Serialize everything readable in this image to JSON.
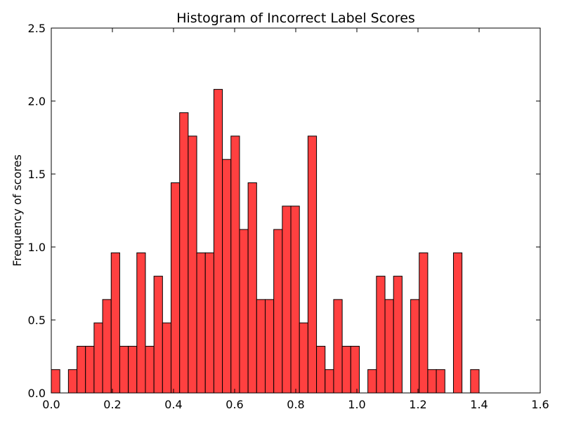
{
  "chart_data": {
    "type": "bar",
    "title": "Histogram of Incorrect Label Scores",
    "xlabel": "",
    "ylabel": "Frequency of scores",
    "xlim": [
      0.0,
      1.6
    ],
    "ylim": [
      0.0,
      2.5
    ],
    "bin_width": 0.028,
    "bins_start": [
      0.0,
      0.028,
      0.056,
      0.084,
      0.112,
      0.14,
      0.168,
      0.196,
      0.224,
      0.252,
      0.28,
      0.308,
      0.336,
      0.364,
      0.392,
      0.42,
      0.448,
      0.476,
      0.504,
      0.532,
      0.56,
      0.588,
      0.616,
      0.644,
      0.672,
      0.7,
      0.728,
      0.756,
      0.784,
      0.812,
      0.84,
      0.868,
      0.896,
      0.924,
      0.952,
      0.98,
      1.008,
      1.036,
      1.064,
      1.092,
      1.12,
      1.148,
      1.176,
      1.204,
      1.232,
      1.26,
      1.288,
      1.316,
      1.344,
      1.372
    ],
    "values": [
      0.16,
      0.0,
      0.16,
      0.32,
      0.32,
      0.48,
      0.64,
      0.96,
      0.32,
      0.32,
      0.96,
      0.32,
      0.8,
      0.48,
      1.44,
      1.92,
      1.76,
      0.96,
      0.96,
      2.08,
      1.6,
      1.76,
      1.12,
      1.44,
      0.64,
      0.64,
      1.12,
      1.28,
      1.28,
      0.48,
      1.76,
      0.32,
      0.16,
      0.64,
      0.32,
      0.32,
      0.0,
      0.16,
      0.8,
      0.64,
      0.8,
      0.0,
      0.64,
      0.96,
      0.16,
      0.16,
      0.0,
      0.96,
      0.0,
      0.16
    ],
    "x_ticks": [
      "0.0",
      "0.2",
      "0.4",
      "0.6",
      "0.8",
      "1.0",
      "1.2",
      "1.4",
      "1.6"
    ],
    "y_ticks": [
      "0.0",
      "0.5",
      "1.0",
      "1.5",
      "2.0",
      "2.5"
    ],
    "grid": false,
    "bar_color": "#ff4040",
    "edge_color": "#000000"
  }
}
